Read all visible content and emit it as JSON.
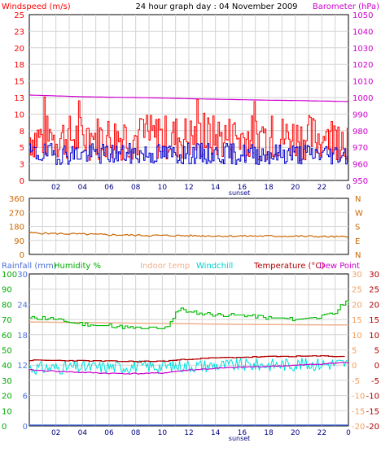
{
  "chart_data": [
    {
      "type": "line",
      "title": "24 hour graph day : 04 November 2009",
      "ylabel_left": "Windspeed (m/s)",
      "ylabel_right": "Barometer (hPa)",
      "x_ticks": [
        "02",
        "04",
        "06",
        "08",
        "10",
        "12",
        "14",
        "16",
        "18",
        "20",
        "22",
        "0"
      ],
      "x_marker": "sunset",
      "y_left_ticks": [
        "0",
        "3",
        "5",
        "8",
        "10",
        "13",
        "15",
        "18",
        "20",
        "23",
        "25"
      ],
      "ylim_left": [
        0,
        25
      ],
      "y_right_ticks": [
        "950",
        "960",
        "970",
        "980",
        "990",
        "1000",
        "1010",
        "1020",
        "1030",
        "1040",
        "1050"
      ],
      "ylim_right": [
        950,
        1050
      ],
      "grid": true,
      "series": [
        {
          "name": "Barometer (hPa)",
          "color": "#d000d0",
          "axis": "right",
          "x": [
            0,
            2,
            4,
            6,
            8,
            10,
            12,
            14,
            16,
            18,
            20,
            22,
            24
          ],
          "values": [
            1001.5,
            1001.0,
            1000.5,
            1000.2,
            1000.0,
            999.7,
            999.3,
            999.0,
            998.7,
            998.4,
            998.2,
            997.9,
            997.6
          ]
        },
        {
          "name": "Wind gust (m/s)",
          "color": "#ff0000",
          "axis": "left",
          "base": 6.5,
          "amp": 3.5,
          "seed": 7
        },
        {
          "name": "Wind average (m/s)",
          "color": "#0000cc",
          "axis": "left",
          "base": 4.0,
          "amp": 1.6,
          "seed": 19
        }
      ]
    },
    {
      "type": "line",
      "ylim": [
        0,
        360
      ],
      "y_ticks": [
        "0",
        "90",
        "180",
        "270",
        "360"
      ],
      "right_labels": [
        "N",
        "W",
        "S",
        "E",
        "N"
      ],
      "grid": true,
      "series": [
        {
          "name": "Wind direction",
          "color": "#cc6600",
          "x": [
            0,
            3,
            6,
            9,
            12,
            15,
            18,
            21,
            24
          ],
          "values": [
            138,
            132,
            126,
            122,
            120,
            118,
            118,
            116,
            112
          ]
        }
      ]
    },
    {
      "type": "line",
      "header_labels": {
        "rainfall": "Rainfall (mm)",
        "humidity": "Humidity %",
        "indoor": "Indoor temp",
        "windchill": "Windchill",
        "temperature": "Temperature (°C)",
        "dewpoint": "Dew Point"
      },
      "x_ticks": [
        "02",
        "04",
        "06",
        "08",
        "10",
        "12",
        "14",
        "16",
        "18",
        "20",
        "22",
        "0"
      ],
      "x_marker": "sunset",
      "y_humidity_ticks": [
        "0",
        "10",
        "20",
        "30",
        "40",
        "50",
        "60",
        "70",
        "80",
        "90",
        "100"
      ],
      "y_rain_ticks": [
        "0",
        "6",
        "12",
        "18",
        "24",
        "30"
      ],
      "y_temp_ticks": [
        "30",
        "25",
        "20",
        "15",
        "10",
        "5",
        "0",
        "-5",
        "-10",
        "-15",
        "-20"
      ],
      "y_temp_ticks_right": [
        "30",
        "25",
        "20",
        "15",
        "10",
        "5",
        "0",
        "-5",
        "-10",
        "-15",
        "-20"
      ],
      "ylim_temp": [
        -20,
        30
      ],
      "grid": true,
      "series": [
        {
          "name": "Humidity %",
          "color": "#00bb00",
          "x": [
            0,
            1,
            2,
            3,
            4,
            5,
            6,
            7,
            8,
            9,
            10,
            10.5,
            11,
            11.5,
            12,
            13,
            14,
            15,
            16,
            17,
            18,
            19,
            20,
            21,
            22,
            23,
            23.5,
            24
          ],
          "values": [
            71,
            71,
            70,
            68,
            67,
            66,
            66,
            65,
            64,
            64,
            64,
            67,
            75,
            77,
            75,
            74,
            73,
            73,
            73,
            72,
            71,
            71,
            70,
            71,
            72,
            74,
            80,
            82
          ]
        },
        {
          "name": "Indoor temp",
          "color": "#f0b090",
          "x": [
            0,
            4,
            8,
            12,
            16,
            20,
            24
          ],
          "values": [
            14.2,
            14.0,
            13.8,
            13.6,
            13.4,
            13.3,
            13.2
          ]
        },
        {
          "name": "Temperature (°C)",
          "color": "#b00000",
          "x": [
            0,
            3,
            6,
            8,
            10,
            12,
            14,
            16,
            18,
            20,
            22,
            24
          ],
          "values": [
            1.6,
            1.5,
            1.3,
            1.2,
            1.3,
            2.0,
            2.4,
            2.6,
            2.8,
            2.9,
            3.0,
            2.8
          ]
        },
        {
          "name": "Windchill",
          "color": "#00e0e0",
          "base": -1.0,
          "amp": 2.2,
          "seed": 31
        },
        {
          "name": "Dew Point",
          "color": "#cc00cc",
          "x": [
            0,
            2,
            4,
            6,
            8,
            10,
            12,
            14,
            16,
            18,
            20,
            22,
            24
          ],
          "values": [
            -1.6,
            -2.0,
            -2.4,
            -2.7,
            -2.8,
            -2.6,
            -1.6,
            -1.1,
            -0.7,
            -0.4,
            -0.1,
            0.4,
            0.9
          ]
        }
      ]
    }
  ]
}
